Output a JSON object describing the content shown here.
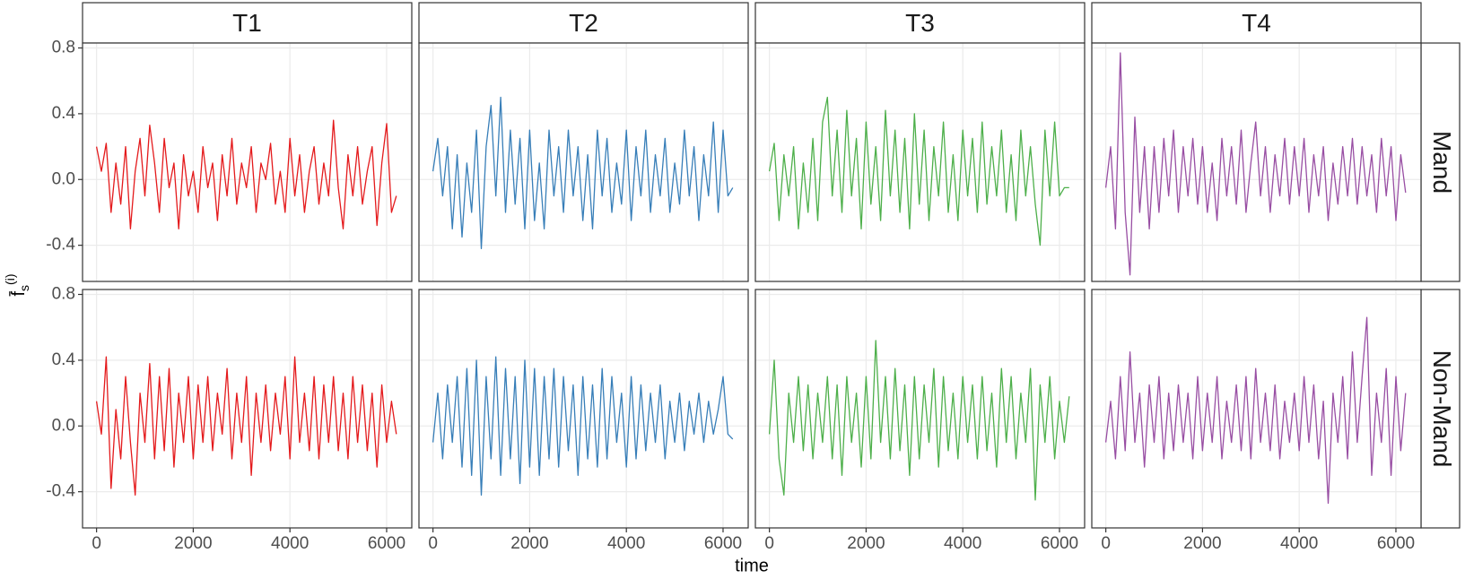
{
  "chart_data": {
    "type": "line",
    "columns": [
      "T1",
      "T2",
      "T3",
      "T4"
    ],
    "rows": [
      "Mand",
      "Non-Mand"
    ],
    "xlabel": "time",
    "ylabel": {
      "base": "f̄",
      "sub": "s",
      "sup": "(i)"
    },
    "xlim": [
      -290,
      6520
    ],
    "ylim": [
      -0.62,
      0.83
    ],
    "xticks": [
      0,
      2000,
      4000,
      6000
    ],
    "yticks": [
      -0.4,
      {
        "value": 0,
        "label": "0.0"
      },
      0.4,
      0.8
    ],
    "grid": true,
    "x": [
      0,
      100,
      200,
      300,
      400,
      500,
      600,
      700,
      800,
      900,
      1000,
      1100,
      1200,
      1300,
      1400,
      1500,
      1600,
      1700,
      1800,
      1900,
      2000,
      2100,
      2200,
      2300,
      2400,
      2500,
      2600,
      2700,
      2800,
      2900,
      3000,
      3100,
      3200,
      3300,
      3400,
      3500,
      3600,
      3700,
      3800,
      3900,
      4000,
      4100,
      4200,
      4300,
      4400,
      4500,
      4600,
      4700,
      4800,
      4900,
      5000,
      5100,
      5200,
      5300,
      5400,
      5500,
      5600,
      5700,
      5800,
      5900,
      6000,
      6100,
      6200
    ],
    "series": [
      {
        "color": "#e41a1c",
        "values": [
          0.2,
          0.05,
          0.22,
          -0.2,
          0.1,
          -0.15,
          0.2,
          -0.3,
          0.05,
          0.25,
          -0.1,
          0.33,
          0.1,
          -0.2,
          0.25,
          -0.05,
          0.1,
          -0.3,
          0.15,
          -0.1,
          0.05,
          -0.2,
          0.2,
          -0.05,
          0.1,
          -0.25,
          0.15,
          -0.1,
          0.25,
          -0.15,
          0.1,
          -0.05,
          0.2,
          -0.2,
          0.1,
          0.0,
          0.22,
          -0.15,
          0.05,
          -0.2,
          0.25,
          -0.1,
          0.15,
          -0.2,
          0.05,
          0.2,
          -0.15,
          0.1,
          -0.1,
          0.36,
          -0.05,
          -0.3,
          0.15,
          -0.1,
          0.2,
          -0.15,
          0.05,
          0.2,
          -0.28,
          0.1,
          0.34,
          -0.2,
          -0.1
        ]
      },
      {
        "color": "#377eb8",
        "values": [
          0.05,
          0.25,
          -0.1,
          0.2,
          -0.3,
          0.15,
          -0.35,
          0.1,
          -0.2,
          0.3,
          -0.42,
          0.2,
          0.45,
          -0.1,
          0.5,
          -0.2,
          0.3,
          -0.15,
          0.25,
          -0.3,
          0.3,
          -0.25,
          0.1,
          -0.3,
          0.3,
          -0.1,
          0.2,
          -0.2,
          0.3,
          -0.1,
          0.2,
          -0.25,
          0.15,
          -0.3,
          0.3,
          -0.1,
          0.25,
          -0.2,
          0.1,
          -0.15,
          0.3,
          -0.25,
          0.2,
          -0.1,
          0.3,
          -0.2,
          0.15,
          -0.1,
          0.25,
          -0.2,
          0.1,
          -0.15,
          0.3,
          -0.1,
          0.2,
          -0.25,
          0.15,
          -0.1,
          0.35,
          -0.2,
          0.3,
          -0.1,
          -0.05
        ]
      },
      {
        "color": "#4daf4a",
        "values": [
          0.05,
          0.22,
          -0.25,
          0.15,
          -0.1,
          0.2,
          -0.3,
          0.1,
          -0.2,
          0.25,
          -0.25,
          0.35,
          0.5,
          -0.1,
          0.3,
          -0.2,
          0.42,
          -0.1,
          0.25,
          -0.3,
          0.35,
          -0.15,
          0.2,
          -0.25,
          0.42,
          -0.1,
          0.3,
          -0.2,
          0.25,
          -0.3,
          0.4,
          -0.15,
          0.3,
          -0.25,
          0.2,
          -0.1,
          0.35,
          -0.2,
          0.15,
          -0.25,
          0.3,
          -0.1,
          0.25,
          -0.2,
          0.35,
          -0.15,
          0.2,
          -0.1,
          0.3,
          -0.2,
          0.15,
          -0.25,
          0.3,
          -0.1,
          0.2,
          -0.15,
          -0.4,
          0.3,
          -0.1,
          0.35,
          -0.1,
          -0.05,
          -0.05
        ]
      },
      {
        "color": "#984ea3",
        "values": [
          -0.05,
          0.2,
          -0.3,
          0.77,
          -0.2,
          -0.58,
          0.38,
          -0.2,
          0.2,
          -0.3,
          0.2,
          -0.2,
          0.25,
          -0.1,
          0.3,
          -0.2,
          0.2,
          -0.1,
          0.25,
          -0.15,
          0.2,
          -0.2,
          0.1,
          -0.25,
          0.25,
          -0.1,
          0.2,
          -0.15,
          0.3,
          -0.2,
          0.1,
          0.35,
          -0.1,
          0.2,
          -0.2,
          0.15,
          -0.1,
          0.25,
          -0.15,
          0.2,
          -0.1,
          0.25,
          -0.2,
          0.15,
          -0.1,
          0.2,
          -0.25,
          0.1,
          -0.15,
          0.2,
          -0.1,
          0.25,
          -0.15,
          0.2,
          -0.1,
          0.15,
          -0.2,
          0.25,
          -0.1,
          0.2,
          -0.25,
          0.15,
          -0.08
        ]
      },
      {
        "color": "#e41a1c",
        "values": [
          0.15,
          -0.05,
          0.42,
          -0.38,
          0.1,
          -0.2,
          0.3,
          -0.1,
          -0.42,
          0.2,
          -0.1,
          0.38,
          -0.2,
          0.3,
          -0.15,
          0.35,
          -0.25,
          0.2,
          -0.1,
          0.3,
          -0.2,
          0.25,
          -0.1,
          0.3,
          -0.15,
          0.2,
          -0.05,
          0.35,
          -0.2,
          0.2,
          -0.1,
          0.3,
          -0.3,
          0.2,
          -0.1,
          0.25,
          -0.15,
          0.2,
          -0.05,
          0.3,
          -0.2,
          0.42,
          -0.1,
          0.2,
          -0.15,
          0.3,
          -0.2,
          0.25,
          -0.1,
          0.3,
          -0.15,
          0.2,
          -0.2,
          0.3,
          -0.1,
          0.25,
          -0.15,
          0.2,
          -0.25,
          0.25,
          -0.1,
          0.15,
          -0.05
        ]
      },
      {
        "color": "#377eb8",
        "values": [
          -0.1,
          0.2,
          -0.2,
          0.25,
          -0.1,
          0.3,
          -0.25,
          0.35,
          -0.3,
          0.4,
          -0.42,
          0.3,
          -0.2,
          0.42,
          -0.3,
          0.35,
          -0.2,
          0.3,
          -0.35,
          0.4,
          -0.25,
          0.35,
          -0.3,
          0.3,
          -0.2,
          0.35,
          -0.25,
          0.3,
          -0.15,
          0.25,
          -0.3,
          0.3,
          -0.2,
          0.25,
          -0.25,
          0.35,
          -0.2,
          0.3,
          -0.1,
          0.2,
          -0.25,
          0.3,
          -0.2,
          0.25,
          -0.15,
          0.2,
          -0.1,
          0.25,
          -0.2,
          0.15,
          -0.1,
          0.2,
          -0.15,
          0.15,
          -0.05,
          0.2,
          -0.1,
          0.15,
          -0.05,
          0.1,
          0.3,
          -0.05,
          -0.08
        ]
      },
      {
        "color": "#4daf4a",
        "values": [
          -0.05,
          0.4,
          -0.2,
          -0.42,
          0.2,
          -0.1,
          0.3,
          -0.15,
          0.25,
          -0.2,
          0.2,
          -0.1,
          0.3,
          -0.2,
          0.25,
          -0.3,
          0.3,
          -0.1,
          0.2,
          -0.25,
          0.3,
          -0.2,
          0.52,
          -0.1,
          0.3,
          -0.2,
          0.35,
          -0.15,
          0.25,
          -0.3,
          0.3,
          -0.2,
          0.25,
          -0.1,
          0.35,
          -0.25,
          0.3,
          -0.15,
          0.2,
          -0.2,
          0.3,
          -0.1,
          0.25,
          -0.2,
          0.3,
          -0.15,
          0.2,
          -0.25,
          0.35,
          -0.1,
          0.3,
          -0.2,
          0.2,
          -0.1,
          0.35,
          -0.45,
          0.25,
          -0.1,
          0.3,
          -0.2,
          0.15,
          -0.1,
          0.18
        ]
      },
      {
        "color": "#984ea3",
        "values": [
          -0.1,
          0.15,
          -0.2,
          0.3,
          -0.15,
          0.45,
          -0.1,
          0.2,
          -0.25,
          0.25,
          -0.1,
          0.3,
          -0.2,
          0.2,
          -0.15,
          0.25,
          -0.1,
          0.2,
          -0.2,
          0.3,
          -0.15,
          0.2,
          -0.1,
          0.3,
          -0.2,
          0.15,
          -0.1,
          0.25,
          -0.15,
          0.3,
          -0.2,
          0.35,
          -0.1,
          0.2,
          -0.15,
          0.25,
          -0.2,
          0.15,
          -0.1,
          0.2,
          -0.15,
          0.3,
          -0.1,
          0.25,
          -0.2,
          0.15,
          -0.47,
          0.2,
          -0.1,
          0.3,
          -0.2,
          0.45,
          -0.1,
          0.3,
          0.66,
          -0.3,
          0.2,
          -0.1,
          0.35,
          -0.3,
          0.3,
          -0.15,
          0.2
        ]
      }
    ]
  }
}
